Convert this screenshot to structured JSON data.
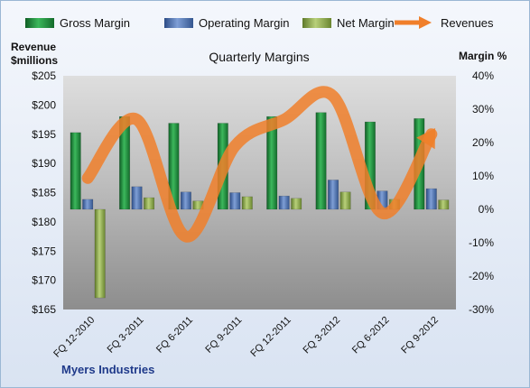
{
  "chart_data": {
    "type": "bar",
    "title": "Quarterly Margins",
    "company": "Myers Industries",
    "y_left_label_line1": "Revenue",
    "y_left_label_line2": "$millions",
    "y_right_label": "Margin %",
    "y_left_range": [
      165,
      205
    ],
    "y_left_ticks": [
      "$165",
      "$170",
      "$175",
      "$180",
      "$185",
      "$190",
      "$195",
      "$200",
      "$205"
    ],
    "y_right_range": [
      -0.3,
      0.4
    ],
    "y_right_ticks": [
      "-30%",
      "-20%",
      "-10%",
      "0%",
      "10%",
      "20%",
      "30%",
      "40%"
    ],
    "categories": [
      "FQ 12-2010",
      "FQ 3-2011",
      "FQ 6-2011",
      "FQ 9-2011",
      "FQ 12-2011",
      "FQ 3-2012",
      "FQ 6-2012",
      "FQ 9-2012"
    ],
    "series": [
      {
        "name": "Gross Margin",
        "axis": "right",
        "color": "#1f8a3a",
        "values": [
          0.23,
          0.278,
          0.258,
          0.258,
          0.278,
          0.29,
          0.262,
          0.272
        ]
      },
      {
        "name": "Operating Margin",
        "axis": "right",
        "color": "#4a6fb0",
        "values": [
          0.03,
          0.068,
          0.052,
          0.05,
          0.04,
          0.088,
          0.055,
          0.062
        ]
      },
      {
        "name": "Net Margin",
        "axis": "right",
        "color": "#8fb04a",
        "values": [
          -0.265,
          0.035,
          0.025,
          0.038,
          0.033,
          0.052,
          0.03,
          0.028
        ]
      },
      {
        "name": "Revenues",
        "type": "line",
        "axis": "left",
        "color": "#f07f2a",
        "values": [
          187.5,
          197.5,
          177.5,
          193.0,
          197.5,
          201.5,
          181.5,
          195.0
        ]
      }
    ],
    "legend_position": "top",
    "grid": false
  }
}
